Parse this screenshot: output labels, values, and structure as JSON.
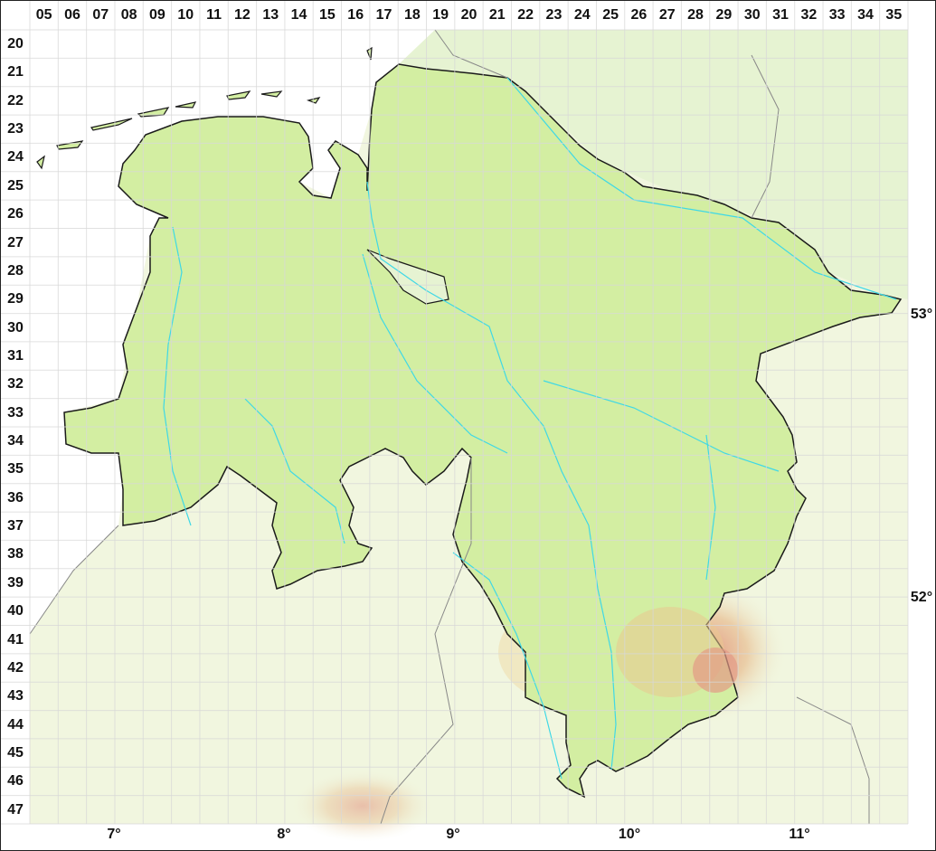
{
  "map": {
    "column_labels": [
      "05",
      "06",
      "07",
      "08",
      "09",
      "10",
      "11",
      "12",
      "13",
      "14",
      "15",
      "16",
      "17",
      "18",
      "19",
      "20",
      "21",
      "22",
      "23",
      "24",
      "25",
      "26",
      "27",
      "28",
      "29",
      "30",
      "31",
      "32",
      "33",
      "34",
      "35"
    ],
    "row_labels": [
      "20",
      "21",
      "22",
      "23",
      "24",
      "25",
      "26",
      "27",
      "28",
      "29",
      "30",
      "31",
      "32",
      "33",
      "34",
      "35",
      "36",
      "37",
      "38",
      "39",
      "40",
      "41",
      "42",
      "43",
      "44",
      "45",
      "46",
      "47"
    ],
    "longitude_labels": [
      "7°",
      "8°",
      "9°",
      "10°",
      "11°"
    ],
    "latitude_labels": [
      "53°",
      "52°"
    ],
    "colors": {
      "region_fill": "#d3eea2",
      "outside_fill": "#f1f6df",
      "border": "#1a1a1a",
      "rivers": "#3fd8e6",
      "grid": "#dcdcdc",
      "relief_high": "#e39a86"
    }
  }
}
